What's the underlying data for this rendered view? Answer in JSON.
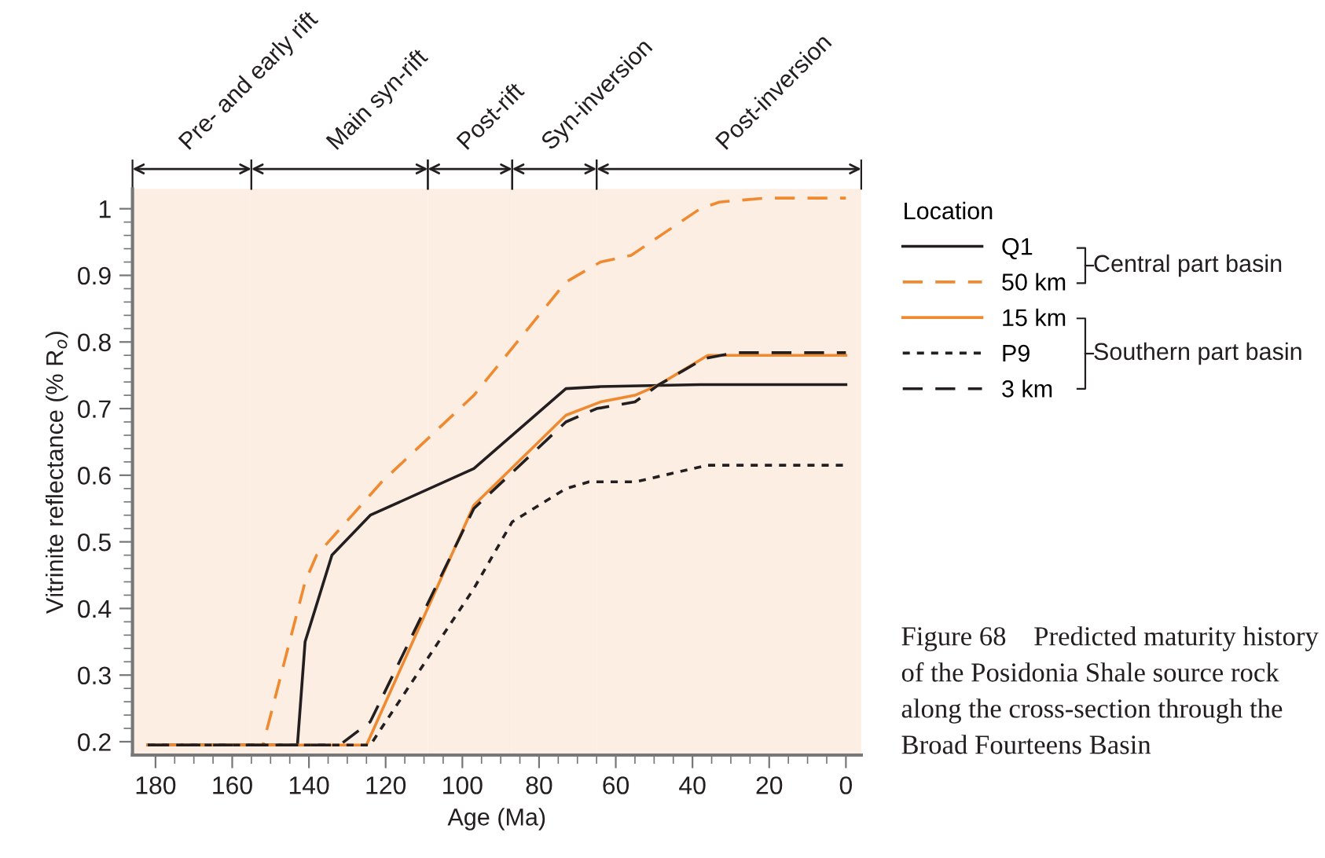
{
  "chart_data": {
    "type": "line",
    "xlabel": "Age (Ma)",
    "ylabel": "Vitrinite reflectance (% R$_{o}$)",
    "legend_title": "Location",
    "legend": "right",
    "xlim": [
      186,
      -4
    ],
    "ylim": [
      0.18,
      1.03
    ],
    "xticks": [
      180,
      {
        "value": 175,
        "label": null
      },
      {
        "value": 170,
        "label": null
      },
      {
        "value": 165,
        "label": null
      },
      160,
      {
        "value": 155,
        "label": null
      },
      {
        "value": 150,
        "label": null
      },
      {
        "value": 145,
        "label": null
      },
      140,
      {
        "value": 135,
        "label": null
      },
      {
        "value": 130,
        "label": null
      },
      {
        "value": 125,
        "label": null
      },
      120,
      {
        "value": 115,
        "label": null
      },
      {
        "value": 110,
        "label": null
      },
      {
        "value": 105,
        "label": null
      },
      100,
      {
        "value": 95,
        "label": null
      },
      {
        "value": 90,
        "label": null
      },
      {
        "value": 85,
        "label": null
      },
      80,
      {
        "value": 75,
        "label": null
      },
      {
        "value": 70,
        "label": null
      },
      {
        "value": 65,
        "label": null
      },
      60,
      {
        "value": 55,
        "label": null
      },
      {
        "value": 50,
        "label": null
      },
      {
        "value": 45,
        "label": null
      },
      40,
      {
        "value": 35,
        "label": null
      },
      {
        "value": 30,
        "label": null
      },
      {
        "value": 25,
        "label": null
      },
      20,
      {
        "value": 15,
        "label": null
      },
      {
        "value": 10,
        "label": null
      },
      {
        "value": 5,
        "label": null
      },
      0
    ],
    "yticks": [
      0.2,
      {
        "value": 0.22,
        "label": null
      },
      {
        "value": 0.24,
        "label": null
      },
      {
        "value": 0.26,
        "label": null
      },
      {
        "value": 0.28,
        "label": null
      },
      0.3,
      {
        "value": 0.32,
        "label": null
      },
      {
        "value": 0.34,
        "label": null
      },
      {
        "value": 0.36,
        "label": null
      },
      {
        "value": 0.38,
        "label": null
      },
      0.4,
      {
        "value": 0.42,
        "label": null
      },
      {
        "value": 0.44,
        "label": null
      },
      {
        "value": 0.46,
        "label": null
      },
      {
        "value": 0.48,
        "label": null
      },
      0.5,
      {
        "value": 0.52,
        "label": null
      },
      {
        "value": 0.54,
        "label": null
      },
      {
        "value": 0.56,
        "label": null
      },
      {
        "value": 0.58,
        "label": null
      },
      0.6,
      {
        "value": 0.62,
        "label": null
      },
      {
        "value": 0.64,
        "label": null
      },
      {
        "value": 0.66,
        "label": null
      },
      {
        "value": 0.68,
        "label": null
      },
      0.7,
      {
        "value": 0.72,
        "label": null
      },
      {
        "value": 0.74,
        "label": null
      },
      {
        "value": 0.76,
        "label": null
      },
      {
        "value": 0.78,
        "label": null
      },
      0.8,
      {
        "value": 0.82,
        "label": null
      },
      {
        "value": 0.84,
        "label": null
      },
      {
        "value": 0.86,
        "label": null
      },
      {
        "value": 0.88,
        "label": null
      },
      0.9,
      {
        "value": 0.92,
        "label": null
      },
      {
        "value": 0.94,
        "label": null
      },
      {
        "value": 0.96,
        "label": null
      },
      {
        "value": 0.98,
        "label": null
      },
      {
        "value": 1,
        "label": "1"
      }
    ],
    "grid": false,
    "marker": "none",
    "series": [
      {
        "name": "Q1",
        "color": "#231f20",
        "line_style": "solid",
        "x": [
          182,
          143,
          141,
          134,
          124,
          97,
          73,
          64,
          38,
          0
        ],
        "values": [
          0.195,
          0.195,
          0.35,
          0.48,
          0.54,
          0.61,
          0.73,
          0.733,
          0.736,
          0.736
        ]
      },
      {
        "name": "50 km",
        "color": "#f08a30",
        "line_style": "dashed",
        "x": [
          182,
          152,
          141,
          138,
          121,
          97,
          73,
          64,
          56,
          38,
          33,
          21,
          0
        ],
        "values": [
          0.195,
          0.195,
          0.44,
          0.48,
          0.59,
          0.72,
          0.89,
          0.92,
          0.93,
          1.0,
          1.01,
          1.016,
          1.016
        ]
      },
      {
        "name": "15 km",
        "color": "#f08a30",
        "line_style": "solid",
        "x": [
          182,
          125,
          97,
          73,
          64,
          55,
          49,
          36,
          0
        ],
        "values": [
          0.195,
          0.195,
          0.555,
          0.69,
          0.71,
          0.72,
          0.735,
          0.78,
          0.78
        ]
      },
      {
        "name": "P9",
        "color": "#231f20",
        "line_style": "dotted",
        "x": [
          182,
          124,
          97,
          87,
          73,
          67,
          55,
          36,
          0
        ],
        "values": [
          0.195,
          0.195,
          0.43,
          0.53,
          0.58,
          0.59,
          0.59,
          0.615,
          0.615
        ]
      },
      {
        "name": "3 km",
        "color": "#231f20",
        "line_style": "dashed",
        "x": [
          182,
          132,
          124,
          97,
          73,
          65,
          55,
          49,
          37,
          29,
          0
        ],
        "values": [
          0.195,
          0.195,
          0.23,
          0.55,
          0.68,
          0.7,
          0.71,
          0.735,
          0.775,
          0.784,
          0.784
        ]
      }
    ],
    "bands": [
      {
        "axis": "x",
        "from": 186,
        "to": 155,
        "label": "Pre- and early rift",
        "color": "#fdeee3"
      },
      {
        "axis": "x",
        "from": 155,
        "to": 109,
        "label": "Main syn-rift",
        "color": "#fdeee3"
      },
      {
        "axis": "x",
        "from": 109,
        "to": 87,
        "label": "Post-rift",
        "color": "#fdeee3"
      },
      {
        "axis": "x",
        "from": 87,
        "to": 65,
        "label": "Syn-inversion",
        "color": "#fdeee3"
      },
      {
        "axis": "x",
        "from": 65,
        "to": -4,
        "label": "Post-inversion",
        "color": "#fdeee3"
      }
    ],
    "annotations": [
      "Central part basin",
      "Southern part basin",
      "Figure 68    Predicted maturity history of the Posidonia Shale source rock along the cross-section through the Broad Fourteens Basin"
    ]
  }
}
